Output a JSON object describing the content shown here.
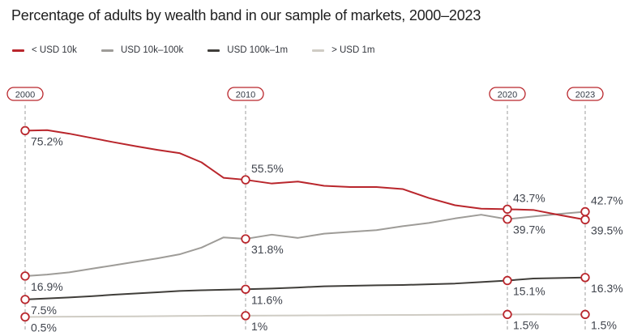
{
  "title": "Percentage of adults by wealth band in our sample of markets, 2000–2023",
  "colors": {
    "accent_red": "#b9262c",
    "series_gray": "#9e9c98",
    "series_dark": "#403e3a",
    "series_light": "#cfccc4",
    "guide_line": "#9c9c9c",
    "title_text": "#1f1f1f",
    "label_text": "#3f434c"
  },
  "chart_data": {
    "type": "line",
    "title": "Percentage of adults by wealth band in our sample of markets, 2000–2023",
    "xlabel": "",
    "ylabel": "",
    "xlim": [
      2000,
      2023
    ],
    "ylim": [
      0,
      80
    ],
    "grid": false,
    "axes_hidden": true,
    "legend_position": "top-left",
    "x": [
      2000,
      2001,
      2002,
      2003,
      2004,
      2005,
      2006,
      2007,
      2008,
      2009,
      2010,
      2011,
      2012,
      2013,
      2014,
      2015,
      2016,
      2017,
      2018,
      2019,
      2020,
      2021,
      2022,
      2023
    ],
    "series": [
      {
        "name": "< USD 10k",
        "color": "#b9262c",
        "values": [
          75.2,
          75.4,
          74.0,
          72.3,
          70.6,
          69.0,
          67.5,
          66.2,
          62.5,
          56.3,
          55.5,
          54.0,
          54.8,
          53.1,
          52.6,
          52.6,
          51.8,
          48.2,
          45.3,
          43.9,
          43.7,
          43.4,
          41.4,
          39.5
        ]
      },
      {
        "name": "USD 10k–100k",
        "color": "#9e9c98",
        "values": [
          16.9,
          17.5,
          18.4,
          19.8,
          21.2,
          22.6,
          24.0,
          25.6,
          28.3,
          32.4,
          31.8,
          33.5,
          32.2,
          33.9,
          34.6,
          35.3,
          36.9,
          38.2,
          40.0,
          41.5,
          39.7,
          40.8,
          41.8,
          42.7
        ]
      },
      {
        "name": "USD 100k–1m",
        "color": "#403e3a",
        "values": [
          7.5,
          7.9,
          8.3,
          8.8,
          9.4,
          9.9,
          10.4,
          10.9,
          11.2,
          11.4,
          11.6,
          11.9,
          12.3,
          12.8,
          13.0,
          13.2,
          13.3,
          13.6,
          13.9,
          14.5,
          15.1,
          15.9,
          16.1,
          16.3
        ]
      },
      {
        "name": "> USD 1m",
        "color": "#cfccc4",
        "values": [
          0.5,
          0.55,
          0.6,
          0.65,
          0.7,
          0.75,
          0.8,
          0.9,
          0.95,
          1.0,
          1.0,
          1.05,
          1.1,
          1.15,
          1.2,
          1.25,
          1.3,
          1.35,
          1.4,
          1.45,
          1.5,
          1.55,
          1.5,
          1.5
        ]
      }
    ],
    "anchor_years": [
      "2000",
      "2010",
      "2020",
      "2023"
    ],
    "value_labels": [
      {
        "year": 2000,
        "series": "< USD 10k",
        "text": "75.2%",
        "placement": "below"
      },
      {
        "year": 2000,
        "series": "USD 10k–100k",
        "text": "16.9%",
        "placement": "below"
      },
      {
        "year": 2000,
        "series": "USD 100k–1m",
        "text": "7.5%",
        "placement": "below"
      },
      {
        "year": 2000,
        "series": "> USD 1m",
        "text": "0.5%",
        "placement": "below"
      },
      {
        "year": 2010,
        "series": "< USD 10k",
        "text": "55.5%",
        "placement": "above"
      },
      {
        "year": 2010,
        "series": "USD 10k–100k",
        "text": "31.8%",
        "placement": "below"
      },
      {
        "year": 2010,
        "series": "USD 100k–1m",
        "text": "11.6%",
        "placement": "below"
      },
      {
        "year": 2010,
        "series": "> USD 1m",
        "text": "1%",
        "placement": "below"
      },
      {
        "year": 2020,
        "series": "< USD 10k",
        "text": "43.7%",
        "placement": "above"
      },
      {
        "year": 2020,
        "series": "USD 10k–100k",
        "text": "39.7%",
        "placement": "below"
      },
      {
        "year": 2020,
        "series": "USD 100k–1m",
        "text": "15.1%",
        "placement": "below"
      },
      {
        "year": 2020,
        "series": "> USD 1m",
        "text": "1.5%",
        "placement": "below"
      },
      {
        "year": 2023,
        "series": "USD 10k–100k",
        "text": "42.7%",
        "placement": "above"
      },
      {
        "year": 2023,
        "series": "< USD 10k",
        "text": "39.5%",
        "placement": "below"
      },
      {
        "year": 2023,
        "series": "USD 100k–1m",
        "text": "16.3%",
        "placement": "below"
      },
      {
        "year": 2023,
        "series": "> USD 1m",
        "text": "1.5%",
        "placement": "below"
      }
    ]
  }
}
